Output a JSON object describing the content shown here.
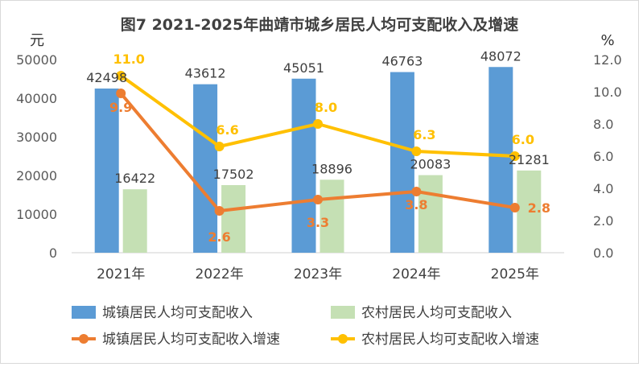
{
  "chart_data": {
    "type": "bar",
    "title": "图7 2021-2025年曲靖市城乡居民人均可支配收入及增速",
    "categories": [
      "2021年",
      "2022年",
      "2023年",
      "2024年",
      "2025年"
    ],
    "left_axis": {
      "unit": "元",
      "range": [
        0,
        50000
      ],
      "ticks": [
        "0",
        "10000",
        "20000",
        "30000",
        "40000",
        "50000"
      ]
    },
    "right_axis": {
      "unit": "%",
      "range": [
        0,
        12
      ],
      "ticks": [
        "0.0",
        "2.0",
        "4.0",
        "6.0",
        "8.0",
        "10.0",
        "12.0"
      ]
    },
    "series": [
      {
        "name": "城镇居民人均可支配收入",
        "type": "bar",
        "axis": "left",
        "color": "#5b9bd5",
        "values": [
          42498,
          43612,
          45051,
          46763,
          48072
        ],
        "labels": [
          "42498",
          "43612",
          "45051",
          "46763",
          "48072"
        ]
      },
      {
        "name": "农村居民人均可支配收入",
        "type": "bar",
        "axis": "left",
        "color": "#c5e0b4",
        "values": [
          16422,
          17502,
          18896,
          20083,
          21281
        ],
        "labels": [
          "16422",
          "17502",
          "18896",
          "20083",
          "21281"
        ]
      },
      {
        "name": "城镇居民人均可支配收入增速",
        "type": "line",
        "axis": "right",
        "color": "#ed7d31",
        "values": [
          9.9,
          2.6,
          3.3,
          3.8,
          2.8
        ],
        "labels": [
          "9.9",
          "2.6",
          "3.3",
          "3.8",
          "2.8"
        ]
      },
      {
        "name": "农村居民人均可支配收入增速",
        "type": "line",
        "axis": "right",
        "color": "#ffc000",
        "values": [
          11.0,
          6.6,
          8.0,
          6.3,
          6.0
        ],
        "labels": [
          "11.0",
          "6.6",
          "8.0",
          "6.3",
          "6.0"
        ]
      }
    ],
    "grid": false,
    "legend_position": "bottom"
  }
}
